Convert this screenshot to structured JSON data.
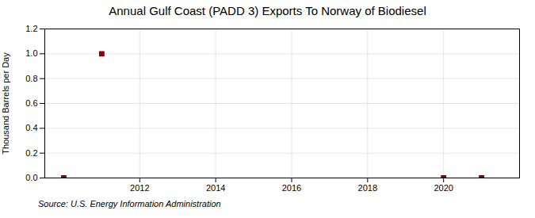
{
  "chart_data": {
    "type": "scatter",
    "title": "Annual Gulf Coast (PADD 3) Exports To Norway of Biodiesel",
    "ylabel": "Thousand Barrels per Day",
    "annotations": [
      "Source: U.S. Energy Information Administration"
    ],
    "x": [
      2010,
      2011,
      2020,
      2021
    ],
    "values": [
      0.0,
      1.0,
      0.0,
      0.0
    ],
    "color": "#8B0000",
    "marker": "square",
    "xlim": [
      2009.5,
      2022.0
    ],
    "ylim": [
      0.0,
      1.2
    ],
    "xticks": [
      2012,
      2014,
      2016,
      2018,
      2020
    ],
    "yticks": [
      {
        "value": 0,
        "label": "0.0"
      },
      0.2,
      0.4,
      0.6,
      0.8,
      {
        "value": 1,
        "label": "1.0"
      },
      1.2
    ],
    "grid": true
  }
}
